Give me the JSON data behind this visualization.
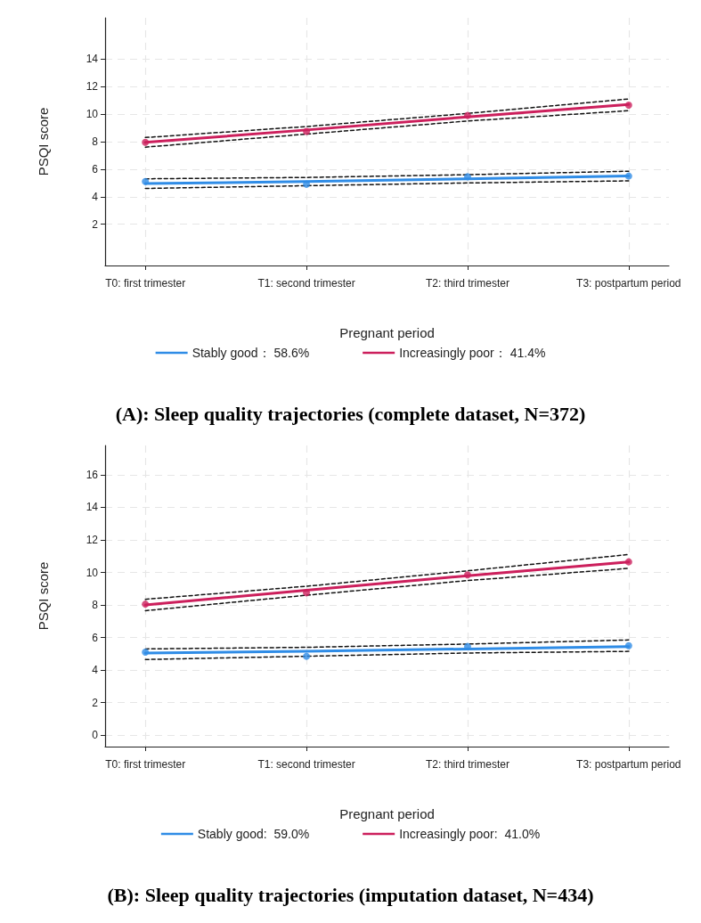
{
  "chart_data": [
    {
      "type": "line",
      "title": "(A): Sleep quality trajectories (complete dataset, N=372)",
      "xlabel": "Pregnant period",
      "ylabel": "PSQI score",
      "categories": [
        "T0: first trimester",
        "T1: second trimester",
        "T2: third trimester",
        "T3: postpartum period"
      ],
      "ylim": [
        -1,
        17
      ],
      "yticks": [
        2,
        4,
        6,
        8,
        10,
        12,
        14
      ],
      "grid": true,
      "legend": "bottom",
      "series": [
        {
          "name": "Stably good： 58.6%",
          "color": "#2f8ce6",
          "marker": "none",
          "line_style": "solid",
          "values": [
            4.95,
            5.1,
            5.3,
            5.5
          ]
        },
        {
          "name": "Increasingly poor： 41.4%",
          "color": "#cc1f5c",
          "marker": "none",
          "line_style": "solid",
          "values": [
            7.95,
            8.85,
            9.8,
            10.7
          ]
        },
        {
          "color": "#111111",
          "marker": "none",
          "line_style": "dashed",
          "values": [
            4.6,
            4.8,
            5.0,
            5.15
          ]
        },
        {
          "color": "#111111",
          "marker": "none",
          "line_style": "dashed",
          "values": [
            5.3,
            5.4,
            5.6,
            5.85
          ]
        },
        {
          "color": "#111111",
          "marker": "none",
          "line_style": "dashed",
          "values": [
            7.6,
            8.55,
            9.5,
            10.25
          ]
        },
        {
          "color": "#111111",
          "marker": "none",
          "line_style": "dashed",
          "values": [
            8.3,
            9.1,
            10.05,
            11.1
          ]
        },
        {
          "type": "scatter",
          "color": "#2f8ce6",
          "marker": "circle",
          "x": [
            "T0: first trimester",
            "T1: second trimester",
            "T2: third trimester",
            "T3: postpartum period"
          ],
          "values": [
            5.1,
            4.9,
            5.45,
            5.5
          ]
        },
        {
          "type": "scatter",
          "color": "#cc1f5c",
          "marker": "circle",
          "x": [
            "T0: first trimester",
            "T1: second trimester",
            "T2: third trimester",
            "T3: postpartum period"
          ],
          "values": [
            7.95,
            8.75,
            9.9,
            10.65
          ]
        }
      ]
    },
    {
      "type": "line",
      "title": "(B): Sleep quality trajectories (imputation dataset, N=434)",
      "xlabel": "Pregnant period",
      "ylabel": "PSQI score",
      "categories": [
        "T0: first trimester",
        "T1: second trimester",
        "T2: third trimester",
        "T3: postpartum period"
      ],
      "ylim": [
        -0.7,
        17.8
      ],
      "yticks": [
        0,
        2,
        4,
        6,
        8,
        10,
        12,
        14,
        16
      ],
      "grid": true,
      "legend": "bottom",
      "series": [
        {
          "name": "Stably good:  59.0%",
          "color": "#2f8ce6",
          "marker": "none",
          "line_style": "solid",
          "values": [
            5.05,
            5.15,
            5.3,
            5.45
          ]
        },
        {
          "name": "Increasingly poor:  41.0%",
          "color": "#cc1f5c",
          "marker": "none",
          "line_style": "solid",
          "values": [
            8.0,
            8.9,
            9.8,
            10.65
          ]
        },
        {
          "color": "#111111",
          "marker": "none",
          "line_style": "dashed",
          "values": [
            4.65,
            4.85,
            5.05,
            5.15
          ]
        },
        {
          "color": "#111111",
          "marker": "none",
          "line_style": "dashed",
          "values": [
            5.3,
            5.4,
            5.6,
            5.85
          ]
        },
        {
          "color": "#111111",
          "marker": "none",
          "line_style": "dashed",
          "values": [
            7.65,
            8.6,
            9.5,
            10.25
          ]
        },
        {
          "color": "#111111",
          "marker": "none",
          "line_style": "dashed",
          "values": [
            8.35,
            9.15,
            10.1,
            11.1
          ]
        },
        {
          "type": "scatter",
          "color": "#2f8ce6",
          "marker": "circle",
          "x": [
            "T0: first trimester",
            "T1: second trimester",
            "T2: third trimester",
            "T3: postpartum period"
          ],
          "values": [
            5.1,
            4.85,
            5.45,
            5.5
          ]
        },
        {
          "type": "scatter",
          "color": "#cc1f5c",
          "marker": "circle",
          "x": [
            "T0: first trimester",
            "T1: second trimester",
            "T2: third trimester",
            "T3: postpartum period"
          ],
          "values": [
            8.05,
            8.75,
            9.85,
            10.65
          ]
        }
      ]
    }
  ]
}
